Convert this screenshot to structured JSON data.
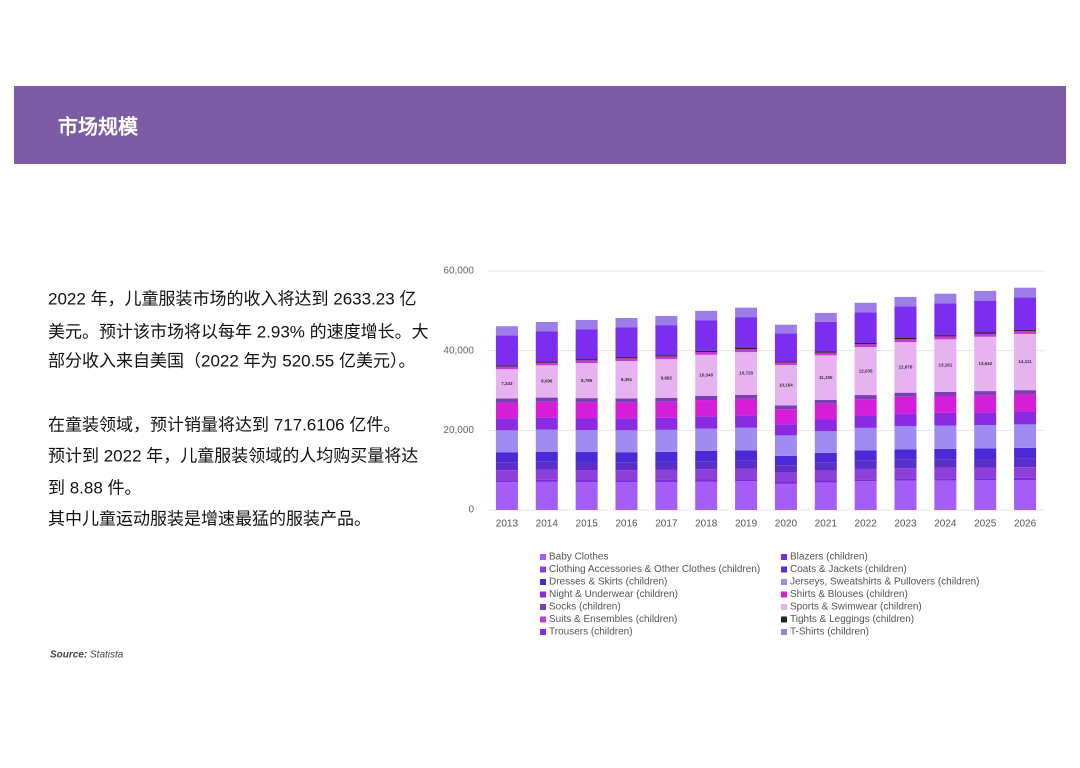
{
  "header": {
    "title": "市场规模"
  },
  "paragraphs": [
    [
      "2022 年，儿童服装市场的收入将达到 2633.23 亿",
      "美元。预计该市场将以每年 2.93% 的速度增长。大",
      "部分收入来自美国（2022 年为 520.55 亿美元）。"
    ],
    [
      "在童装领域，预计销量将达到 717.6106 亿件。",
      "预计到 2022 年，儿童服装领域的人均购买量将达",
      "到 8.88 件。",
      "其中儿童运动服装是增速最猛的服装产品。"
    ]
  ],
  "source": {
    "label": "Source:",
    "text": "Statista"
  },
  "chart_data": {
    "type": "stacked_bar",
    "categories": [
      "2013",
      "2014",
      "2015",
      "2016",
      "2017",
      "2018",
      "2019",
      "2020",
      "2021",
      "2022",
      "2023",
      "2024",
      "2025",
      "2026"
    ],
    "ylim": [
      0,
      60000
    ],
    "yticks": [
      0,
      {
        "value": 20000,
        "label": "20,000"
      },
      {
        "value": 40000,
        "label": "40,000"
      },
      {
        "value": 60000,
        "label": "60,000"
      }
    ],
    "grid": true,
    "series": [
      {
        "name": "Baby Clothes",
        "color": "#a55ef5",
        "values": [
          7000,
          7060,
          7020,
          7010,
          7040,
          7150,
          7230,
          6560,
          6920,
          7210,
          7360,
          7420,
          7460,
          7520
        ]
      },
      {
        "name": "Blazers (children)",
        "color": "#7a2be0",
        "values": [
          500,
          504,
          502,
          501,
          503,
          511,
          517,
          469,
          494,
          515,
          526,
          530,
          533,
          537
        ]
      },
      {
        "name": "Clothing Accessories & Other Clothes (children)",
        "color": "#8e3fd8",
        "values": [
          2500,
          2520,
          2510,
          2500,
          2520,
          2560,
          2580,
          2340,
          2470,
          2580,
          2630,
          2650,
          2670,
          2690
        ]
      },
      {
        "name": "Coats & Jackets (children)",
        "color": "#5b2ec9",
        "values": [
          2000,
          2020,
          2010,
          2000,
          2010,
          2040,
          2070,
          1870,
          1980,
          2060,
          2100,
          2120,
          2130,
          2150
        ]
      },
      {
        "name": "Dresses & Skirts (children)",
        "color": "#4b2ad6",
        "values": [
          2500,
          2520,
          2510,
          2500,
          2520,
          2560,
          2580,
          2340,
          2470,
          2580,
          2630,
          2650,
          2670,
          2690
        ]
      },
      {
        "name": "Jerseys, Sweatshirts & Pullovers (children)",
        "color": "#a08cf0",
        "values": [
          5500,
          5540,
          5520,
          5510,
          5530,
          5620,
          5680,
          5150,
          5430,
          5670,
          5790,
          5830,
          5860,
          5910
        ]
      },
      {
        "name": "Night & Underwear (children)",
        "color": "#8a2be2",
        "values": [
          3000,
          3020,
          3010,
          3000,
          3020,
          3070,
          3100,
          2810,
          2960,
          3090,
          3160,
          3180,
          3200,
          3220
        ]
      },
      {
        "name": "Shirts & Blouses (children)",
        "color": "#d41ed8",
        "values": [
          4000,
          4030,
          4010,
          4000,
          4020,
          4090,
          4130,
          3750,
          3950,
          4120,
          4210,
          4240,
          4260,
          4300
        ]
      },
      {
        "name": "Socks (children)",
        "color": "#7b3fb5",
        "values": [
          1000,
          1010,
          1000,
          1000,
          1010,
          1020,
          1030,
          940,
          990,
          1030,
          1050,
          1060,
          1070,
          1070
        ]
      },
      {
        "name": "Sports & Swimwear (children)",
        "color": "#e6b3f0",
        "values": [
          7343,
          8096,
          8785,
          9361,
          9682,
          10340,
          10720,
          10164,
          11155,
          12035,
          12678,
          13161,
          13642,
          14111
        ],
        "value_labels": [
          "7,343",
          "8,096",
          "8,785",
          "9,361",
          "9,682",
          "10,340",
          "10,720",
          "10,164",
          "11,155",
          "12,035",
          "12,678",
          "13,161",
          "13,642",
          "14,111"
        ]
      },
      {
        "name": "Suits & Ensembles (children)",
        "color": "#c63bd6",
        "values": [
          700,
          706,
          702,
          701,
          704,
          715,
          723,
          656,
          692,
          721,
          736,
          742,
          746,
          752
        ]
      },
      {
        "name": "Tights & Leggings (children)",
        "color": "#222222",
        "values": [
          300,
          302,
          301,
          300,
          302,
          307,
          310,
          281,
          296,
          309,
          316,
          318,
          320,
          322
        ]
      },
      {
        "name": "Trousers (children)",
        "color": "#7b2ef0",
        "values": [
          7500,
          7560,
          7520,
          7510,
          7550,
          7670,
          7750,
          7030,
          7410,
          7730,
          7890,
          7950,
          8000,
          8060
        ]
      },
      {
        "name": "T-Shirts (children)",
        "color": "#9d7de8",
        "values": [
          2300,
          2320,
          2310,
          2300,
          2310,
          2350,
          2380,
          2160,
          2270,
          2370,
          2420,
          2440,
          2450,
          2470
        ]
      }
    ]
  }
}
